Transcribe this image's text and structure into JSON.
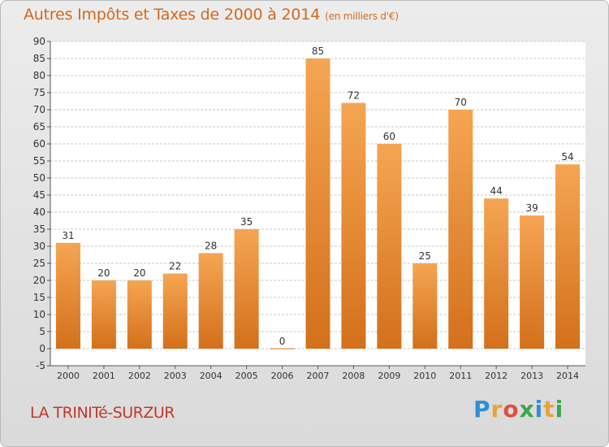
{
  "header": {
    "title": "Autres Impôts et Taxes de 2000 à 2014",
    "unit": "(en milliers d'€)"
  },
  "footer": {
    "commune": "LA TRINITé-SURZUR",
    "logo": "Proxiti",
    "logo_colors": [
      "#2e8fd4",
      "#e8a33a",
      "#e0503a",
      "#3aa84b",
      "#2e8fd4",
      "#e8a33a",
      "#3aa84b"
    ]
  },
  "colors": {
    "bar_top": "#f5a552",
    "bar_bottom": "#d3701b",
    "grid": "#c9c9c9",
    "plot_bg": "#ffffff",
    "title": "#d2691e",
    "commune": "#c0392b"
  },
  "chart_data": {
    "type": "bar",
    "title": "Autres Impôts et Taxes de 2000 à 2014",
    "categories": [
      "2000",
      "2001",
      "2002",
      "2003",
      "2004",
      "2005",
      "2006",
      "2007",
      "2008",
      "2009",
      "2010",
      "2011",
      "2012",
      "2013",
      "2014"
    ],
    "values": [
      31,
      20,
      20,
      22,
      28,
      35,
      0,
      85,
      72,
      60,
      25,
      70,
      44,
      39,
      54
    ],
    "ylim": [
      -5,
      90
    ],
    "yticks": [
      -5,
      0,
      5,
      10,
      15,
      20,
      25,
      30,
      35,
      40,
      45,
      50,
      55,
      60,
      65,
      70,
      75,
      80,
      85,
      90
    ],
    "grid": true,
    "xlabel": "",
    "ylabel": ""
  }
}
